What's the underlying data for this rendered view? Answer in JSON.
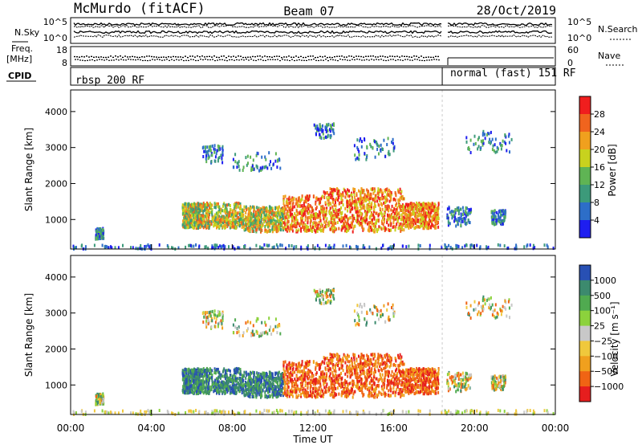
{
  "header": {
    "station": "McMurdo (fitACF)",
    "beam": "Beam 07",
    "date": "28/Oct/2019"
  },
  "panels": {
    "noise": {
      "left_label": "N.Sky",
      "right_label": "N.Search",
      "left_ticks": [
        "10^5",
        "10^0"
      ],
      "right_ticks": [
        "10^5",
        "10^0"
      ]
    },
    "freq": {
      "left_label_line1": "Freq.",
      "left_label_line2": "[MHz]",
      "right_label": "Nave",
      "left_ticks": [
        "18",
        "8"
      ],
      "right_ticks": [
        "60",
        "0"
      ]
    },
    "cpid": {
      "label": "CPID",
      "mode1": "rbsp 200 RF",
      "mode2": "normal (fast) 151 RF",
      "mode_switch_hour": 18.4
    }
  },
  "chart_data": [
    {
      "type": "heatmap",
      "name": "power",
      "ylabel": "Slant Range [km]",
      "xlabel": "",
      "x_range_hours": [
        0,
        24
      ],
      "ylim": [
        180,
        4600
      ],
      "yticks": [
        1000,
        2000,
        3000,
        4000
      ],
      "colorbar_label": "Power [dB]",
      "colorbar_ticks": [
        "4",
        "8",
        "12",
        "16",
        "20",
        "24",
        "28"
      ],
      "colorbar_colors": [
        "#1e1ef0",
        "#2d6ec8",
        "#3c9a7a",
        "#5fb454",
        "#c8d21e",
        "#f0a01e",
        "#f0641e",
        "#f01e1e"
      ]
    },
    {
      "type": "heatmap",
      "name": "velocity",
      "ylabel": "Slant Range [km]",
      "xlabel": "Time UT",
      "x_range_hours": [
        0,
        24
      ],
      "ylim": [
        180,
        4600
      ],
      "yticks": [
        1000,
        2000,
        3000,
        4000
      ],
      "xticks": [
        "00:00",
        "04:00",
        "08:00",
        "12:00",
        "16:00",
        "20:00",
        "00:00"
      ],
      "colorbar_label": "Velocity [m s⁻¹]",
      "colorbar_ticks": [
        "1000",
        "500",
        "100",
        "25",
        "−25",
        "−100",
        "−500",
        "−1000"
      ],
      "colorbar_colors": [
        "#2850b4",
        "#3c8a6e",
        "#50aa50",
        "#8cd23c",
        "#c8c8c8",
        "#f0c83c",
        "#f0a01e",
        "#f06414",
        "#e61e1e"
      ]
    }
  ]
}
